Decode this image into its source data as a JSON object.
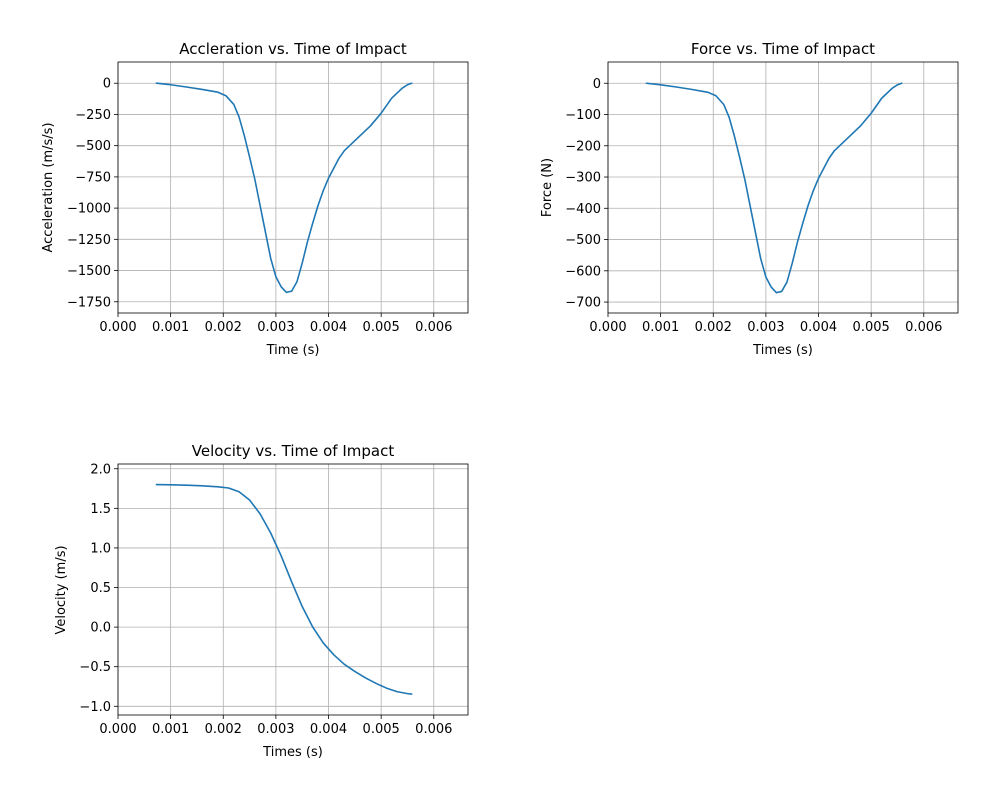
{
  "colors": {
    "series": "#1f77b4",
    "grid": "#b0b0b0"
  },
  "chart_data": [
    {
      "type": "line",
      "title": "Accleration vs. Time of Impact",
      "xlabel": "Time (s)",
      "ylabel": "Acceleration (m/s/s)",
      "xlim": [
        0,
        0.00665
      ],
      "ylim": [
        -1840,
        170
      ],
      "xticks": [
        0,
        0.001,
        0.002,
        0.003,
        0.004,
        0.005,
        0.006
      ],
      "xtick_labels": [
        "0.000",
        "0.001",
        "0.002",
        "0.003",
        "0.004",
        "0.005",
        "0.006"
      ],
      "yticks": [
        0,
        -250,
        -500,
        -750,
        -1000,
        -1250,
        -1500,
        -1750
      ],
      "ytick_labels": [
        "0",
        "−250",
        "−500",
        "−750",
        "−1000",
        "−1250",
        "−1500",
        "−1750"
      ],
      "grid": true,
      "series": [
        {
          "x": [
            0.00073,
            0.001,
            0.0013,
            0.0016,
            0.0019,
            0.00205,
            0.0022,
            0.0023,
            0.0024,
            0.0025,
            0.0026,
            0.0027,
            0.0028,
            0.0029,
            0.003,
            0.0031,
            0.0032,
            0.0033,
            0.0034,
            0.0035,
            0.0036,
            0.0037,
            0.0038,
            0.0039,
            0.004,
            0.0041,
            0.0042,
            0.0043,
            0.0044,
            0.0046,
            0.0048,
            0.005,
            0.0052,
            0.0054,
            0.0055,
            0.00558
          ],
          "y": [
            0,
            -12,
            -30,
            -50,
            -72,
            -100,
            -170,
            -270,
            -420,
            -590,
            -770,
            -980,
            -1190,
            -1400,
            -1550,
            -1630,
            -1675,
            -1665,
            -1590,
            -1440,
            -1270,
            -1120,
            -980,
            -860,
            -760,
            -680,
            -600,
            -540,
            -500,
            -420,
            -340,
            -240,
            -120,
            -40,
            -12,
            0
          ]
        }
      ]
    },
    {
      "type": "line",
      "title": "Force vs. Time of Impact",
      "xlabel": "Times (s)",
      "ylabel": "Force (N)",
      "xlim": [
        0,
        0.00665
      ],
      "ylim": [
        -735,
        68
      ],
      "xticks": [
        0,
        0.001,
        0.002,
        0.003,
        0.004,
        0.005,
        0.006
      ],
      "xtick_labels": [
        "0.000",
        "0.001",
        "0.002",
        "0.003",
        "0.004",
        "0.005",
        "0.006"
      ],
      "yticks": [
        0,
        -100,
        -200,
        -300,
        -400,
        -500,
        -600,
        -700
      ],
      "ytick_labels": [
        "0",
        "−100",
        "−200",
        "−300",
        "−400",
        "−500",
        "−600",
        "−700"
      ],
      "grid": true,
      "series": [
        {
          "x": [
            0.00073,
            0.001,
            0.0013,
            0.0016,
            0.0019,
            0.00205,
            0.0022,
            0.0023,
            0.0024,
            0.0025,
            0.0026,
            0.0027,
            0.0028,
            0.0029,
            0.003,
            0.0031,
            0.0032,
            0.0033,
            0.0034,
            0.0035,
            0.0036,
            0.0037,
            0.0038,
            0.0039,
            0.004,
            0.0041,
            0.0042,
            0.0043,
            0.0044,
            0.0046,
            0.0048,
            0.005,
            0.0052,
            0.0054,
            0.0055,
            0.00558
          ],
          "y": [
            0,
            -5,
            -12,
            -20,
            -29,
            -40,
            -68,
            -108,
            -168,
            -236,
            -308,
            -392,
            -476,
            -560,
            -620,
            -652,
            -670,
            -666,
            -636,
            -576,
            -508,
            -448,
            -392,
            -344,
            -304,
            -272,
            -240,
            -216,
            -200,
            -168,
            -136,
            -96,
            -48,
            -16,
            -5,
            0
          ]
        }
      ]
    },
    {
      "type": "line",
      "title": "Velocity vs. Time of Impact",
      "xlabel": "Times (s)",
      "ylabel": "Velocity (m/s)",
      "xlim": [
        0,
        0.00665
      ],
      "ylim": [
        -1.11,
        2.06
      ],
      "xticks": [
        0,
        0.001,
        0.002,
        0.003,
        0.004,
        0.005,
        0.006
      ],
      "xtick_labels": [
        "0.000",
        "0.001",
        "0.002",
        "0.003",
        "0.004",
        "0.005",
        "0.006"
      ],
      "yticks": [
        2.0,
        1.5,
        1.0,
        0.5,
        0.0,
        -0.5,
        -1.0
      ],
      "ytick_labels": [
        "2.0",
        "1.5",
        "1.0",
        "0.5",
        "0.0",
        "−0.5",
        "−1.0"
      ],
      "grid": true,
      "series": [
        {
          "x": [
            0.00073,
            0.001,
            0.0013,
            0.0016,
            0.0019,
            0.0021,
            0.0023,
            0.0025,
            0.0027,
            0.0029,
            0.0031,
            0.0033,
            0.0035,
            0.0037,
            0.0039,
            0.0041,
            0.0043,
            0.0045,
            0.0047,
            0.0049,
            0.0051,
            0.0053,
            0.0055,
            0.00558
          ],
          "y": [
            1.8,
            1.797,
            1.793,
            1.785,
            1.772,
            1.757,
            1.71,
            1.605,
            1.43,
            1.19,
            0.9,
            0.57,
            0.26,
            0.0,
            -0.2,
            -0.35,
            -0.47,
            -0.56,
            -0.64,
            -0.71,
            -0.77,
            -0.815,
            -0.84,
            -0.845
          ]
        }
      ]
    }
  ]
}
